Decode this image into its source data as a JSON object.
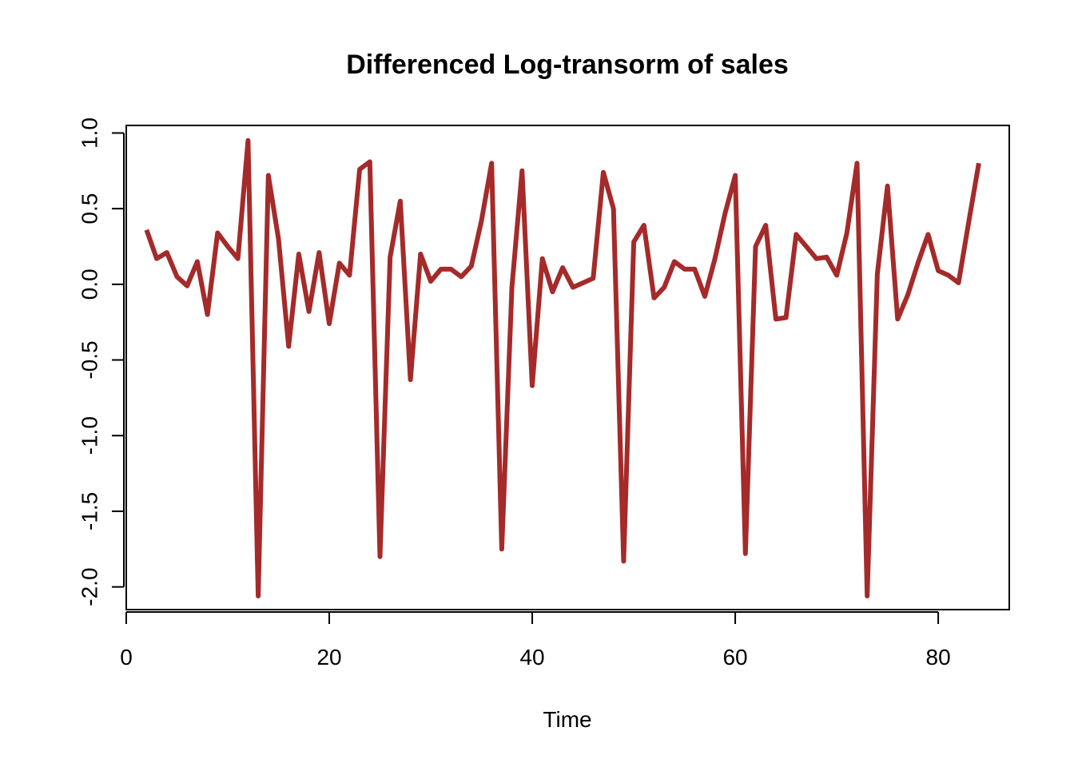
{
  "chart_data": {
    "type": "line",
    "title": "Differenced Log-transorm of sales",
    "xlabel": "Time",
    "ylabel": "",
    "xlim": [
      0,
      87
    ],
    "ylim": [
      -2.15,
      1.05
    ],
    "x_ticks": [
      0,
      20,
      40,
      60,
      80
    ],
    "y_ticks": [
      -2.0,
      -1.5,
      -1.0,
      -0.5,
      0.0,
      0.5,
      1.0
    ],
    "x_tick_labels": [
      "0",
      "20",
      "40",
      "60",
      "80"
    ],
    "y_tick_labels": [
      "-2.0",
      "-1.5",
      "-1.0",
      "-0.5",
      "0.0",
      "0.5",
      "1.0"
    ],
    "grid": false,
    "legend": "none",
    "line_color": "#a52a2a",
    "series": [
      {
        "x": [
          2,
          3,
          4,
          5,
          6,
          7,
          8,
          9,
          10,
          11,
          12,
          13,
          14,
          15,
          16,
          17,
          18,
          19,
          20,
          21,
          22,
          23,
          24,
          25,
          26,
          27,
          28,
          29,
          30,
          31,
          32,
          33,
          34,
          35,
          36,
          37,
          38,
          39,
          40,
          41,
          42,
          43,
          44,
          45,
          46,
          47,
          48,
          49,
          50,
          51,
          52,
          53,
          54,
          55,
          56,
          57,
          58,
          59,
          60,
          61,
          62,
          63,
          64,
          65,
          66,
          67,
          68,
          69,
          70,
          71,
          72,
          73,
          74,
          75,
          76,
          77,
          78,
          79,
          80,
          81,
          82,
          83,
          84
        ],
        "values": [
          0.36,
          0.17,
          0.21,
          0.05,
          -0.01,
          0.15,
          -0.2,
          0.34,
          0.25,
          0.17,
          0.95,
          -2.06,
          0.72,
          0.3,
          -0.41,
          0.2,
          -0.18,
          0.21,
          -0.26,
          0.14,
          0.06,
          0.76,
          0.81,
          -1.8,
          0.18,
          0.55,
          -0.63,
          0.2,
          0.02,
          0.1,
          0.1,
          0.05,
          0.12,
          0.42,
          0.8,
          -1.75,
          -0.02,
          0.75,
          -0.67,
          0.17,
          -0.05,
          0.11,
          -0.02,
          0.01,
          0.04,
          0.74,
          0.5,
          -1.83,
          0.28,
          0.39,
          -0.09,
          -0.02,
          0.15,
          0.1,
          0.1,
          -0.08,
          0.17,
          0.47,
          0.72,
          -1.78,
          0.25,
          0.39,
          -0.23,
          -0.22,
          0.33,
          0.25,
          0.17,
          0.18,
          0.06,
          0.34,
          0.8,
          -2.06,
          0.07,
          0.65,
          -0.23,
          -0.07,
          0.14,
          0.33,
          0.09,
          0.06,
          0.01,
          0.41,
          0.8
        ]
      }
    ]
  }
}
